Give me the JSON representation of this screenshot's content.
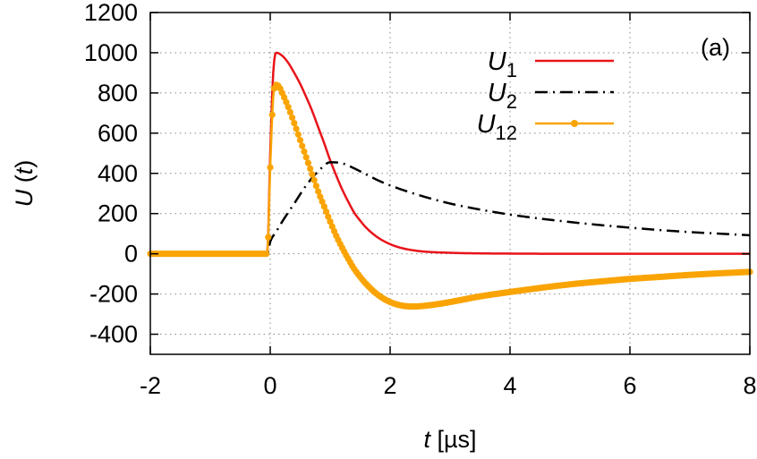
{
  "chart_data": {
    "type": "line",
    "panel_label": "(a)",
    "xlabel": {
      "var": "t",
      "unit": " [µs]"
    },
    "ylabel": {
      "var": "U",
      "arg": "t"
    },
    "xlim": [
      -2,
      8
    ],
    "ylim": [
      -500,
      1200
    ],
    "xticks": [
      -2,
      0,
      2,
      4,
      6,
      8
    ],
    "yticks": [
      -400,
      -200,
      0,
      200,
      400,
      600,
      800,
      1000,
      1200
    ],
    "xtick_labels": [
      "-2",
      "0",
      "2",
      "4",
      "6",
      "8"
    ],
    "ytick_labels": [
      "-400",
      "-200",
      "0",
      "200",
      "400",
      "600",
      "800",
      "1000",
      "1200"
    ],
    "grid": true,
    "legend_position": "top-right",
    "series": [
      {
        "name": "U",
        "sub": "1",
        "color": "#e8141a",
        "style": "solid",
        "x": [
          -2,
          -0.05,
          0,
          0.05,
          0.1,
          0.2,
          0.3,
          0.4,
          0.5,
          0.6,
          0.7,
          0.8,
          0.9,
          1.0,
          1.1,
          1.2,
          1.3,
          1.4,
          1.5,
          1.6,
          1.8,
          2.0,
          2.2,
          2.5,
          3.0,
          3.5,
          4.0,
          5.0,
          6.0,
          8.0
        ],
        "y": [
          0,
          0,
          500,
          900,
          1000,
          985,
          950,
          900,
          845,
          780,
          710,
          630,
          550,
          465,
          390,
          320,
          260,
          205,
          165,
          130,
          80,
          48,
          28,
          13,
          5,
          2,
          1,
          0,
          0,
          0
        ]
      },
      {
        "name": "U",
        "sub": "2",
        "color": "#000000",
        "style": "dashdot",
        "x": [
          -2,
          -0.05,
          0,
          0.1,
          0.2,
          0.4,
          0.6,
          0.8,
          1.0,
          1.2,
          1.4,
          1.6,
          1.8,
          2.0,
          2.5,
          3.0,
          3.5,
          4.0,
          4.5,
          5.0,
          5.5,
          6.0,
          6.5,
          7.0,
          7.5,
          8.0
        ],
        "y": [
          0,
          0,
          60,
          110,
          160,
          250,
          340,
          410,
          455,
          450,
          425,
          395,
          365,
          340,
          290,
          250,
          220,
          195,
          175,
          158,
          143,
          130,
          118,
          108,
          100,
          92
        ]
      },
      {
        "name": "U",
        "sub": "12",
        "color": "#f9a404",
        "style": "solid-markers",
        "x": [
          -2,
          -0.05,
          0,
          0.05,
          0.1,
          0.15,
          0.2,
          0.3,
          0.4,
          0.5,
          0.6,
          0.7,
          0.8,
          0.9,
          1.0,
          1.1,
          1.2,
          1.3,
          1.4,
          1.5,
          1.6,
          1.8,
          2.0,
          2.2,
          2.4,
          2.6,
          2.8,
          3.0,
          3.5,
          4.0,
          4.5,
          5.0,
          5.5,
          6.0,
          6.5,
          7.0,
          7.5,
          8.0
        ],
        "y": [
          0,
          0,
          430,
          780,
          840,
          830,
          800,
          730,
          650,
          565,
          480,
          395,
          310,
          235,
          160,
          90,
          30,
          -25,
          -75,
          -115,
          -150,
          -205,
          -240,
          -258,
          -262,
          -258,
          -250,
          -240,
          -212,
          -190,
          -170,
          -152,
          -138,
          -125,
          -115,
          -105,
          -97,
          -90
        ]
      }
    ]
  }
}
